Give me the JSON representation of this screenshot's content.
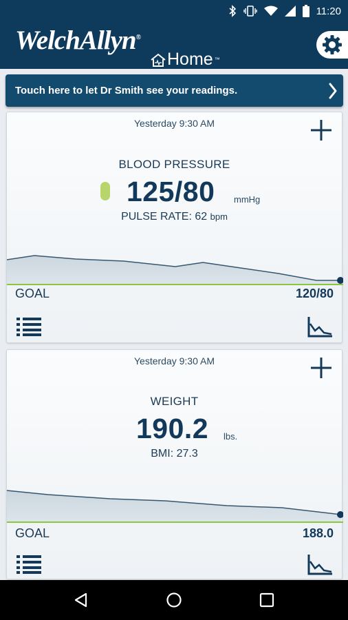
{
  "status_bar": {
    "time": "11:20",
    "icons": [
      "bluetooth-icon",
      "vibrate-icon",
      "wifi-icon",
      "signal-icon",
      "battery-icon"
    ]
  },
  "header": {
    "brand": "WelchAllyn",
    "brand_mark": "®",
    "product": "Home",
    "product_mark": "™",
    "settings_icon": "gear-icon"
  },
  "banner": {
    "text": "Touch here to let Dr Smith see your readings.",
    "icon": "chevron-right-icon"
  },
  "cards": {
    "blood_pressure": {
      "timestamp": "Yesterday 9:30 AM",
      "title": "BLOOD PRESSURE",
      "value": "125/80",
      "unit": "mmHg",
      "sub_label": "PULSE RATE:",
      "sub_value": "62",
      "sub_unit": "bpm",
      "status_color": "#b7d56a",
      "goal_label": "GOAL",
      "goal_value": "120/80"
    },
    "weight": {
      "timestamp": "Yesterday 9:30 AM",
      "title": "WEIGHT",
      "value": "190.2",
      "unit": "lbs.",
      "sub_label": "BMI:",
      "sub_value": "27.3",
      "goal_label": "GOAL",
      "goal_value": "188.0"
    }
  },
  "nav": {
    "back": "back-icon",
    "home": "home-icon",
    "recents": "recents-icon"
  },
  "colors": {
    "header_bg": "#0e3a5c",
    "banner_bg": "#134b6f",
    "goal_line": "#8cc63f",
    "text_dark": "#12385a"
  }
}
